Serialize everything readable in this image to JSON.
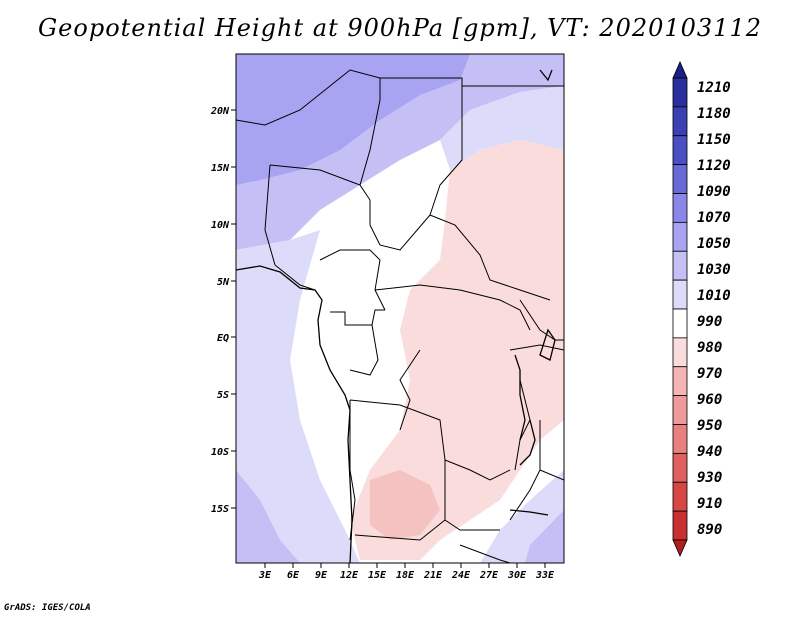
{
  "title": "Geopotential Height at 900hPa [gpm], VT: 2020103112",
  "credit": "GrADS: IGES/COLA",
  "map": {
    "x_ticks": [
      "3E",
      "6E",
      "9E",
      "12E",
      "15E",
      "18E",
      "21E",
      "24E",
      "27E",
      "30E",
      "33E"
    ],
    "y_ticks": [
      "20N",
      "15N",
      "10N",
      "5N",
      "EQ",
      "5S",
      "10S",
      "15S"
    ]
  },
  "colorbar": {
    "labels": [
      "1210",
      "1180",
      "1150",
      "1120",
      "1090",
      "1070",
      "1050",
      "1030",
      "1010",
      "990",
      "980",
      "970",
      "960",
      "950",
      "940",
      "930",
      "910",
      "890"
    ],
    "colors": [
      "#1a1f8c",
      "#2a2fa0",
      "#3a3fb4",
      "#4a4fc4",
      "#6a6ad6",
      "#8a85e6",
      "#a9a4f2",
      "#c4c0f6",
      "#dcdcfa",
      "#ffffff",
      "#fadcdc",
      "#f5b5b5",
      "#ee9a9a",
      "#e88080",
      "#e06060",
      "#d84545",
      "#c83030",
      "#b01e1e"
    ]
  }
}
